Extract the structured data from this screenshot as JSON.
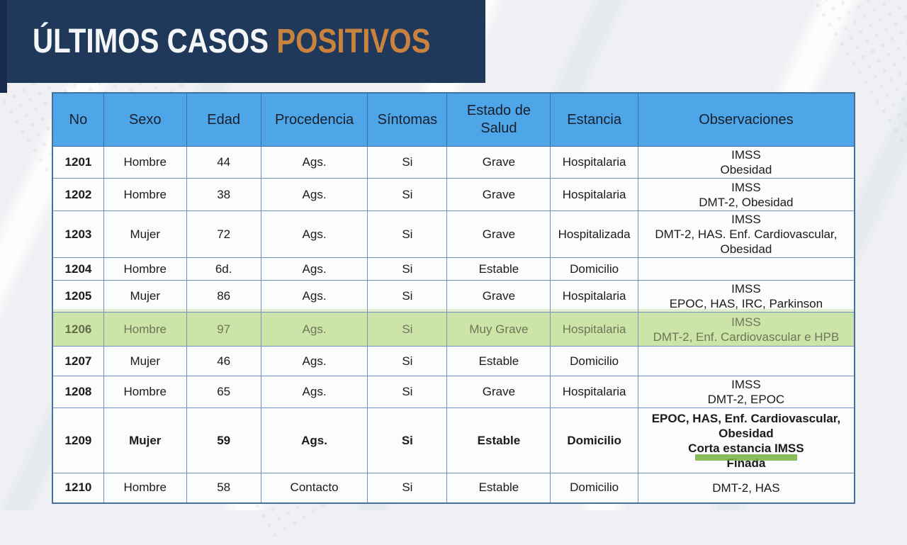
{
  "banner": {
    "title": "ÚLTIMOS CASOS",
    "title_accent": "POSITIVOS"
  },
  "colors": {
    "banner_navy": "#20395a",
    "banner_accent_bar": "#152a4d",
    "title_white": "#f4f6f8",
    "title_orange": "#c9833f",
    "header_blue": "#4ea6e9",
    "table_border_blue": "#41719c",
    "highlight_green": "#cde4a9",
    "marker_green": "#74b23e"
  },
  "table": {
    "columns": [
      {
        "key": "no",
        "label": "No"
      },
      {
        "key": "sexo",
        "label": "Sexo"
      },
      {
        "key": "edad",
        "label": "Edad"
      },
      {
        "key": "procedencia",
        "label": "Procedencia"
      },
      {
        "key": "sintomas",
        "label": "Síntomas"
      },
      {
        "key": "estado_de_salud",
        "label": "Estado de Salud"
      },
      {
        "key": "estancia",
        "label": "Estancia"
      },
      {
        "key": "observaciones",
        "label": "Observaciones"
      }
    ],
    "rows": [
      {
        "no": "1201",
        "sexo": "Hombre",
        "edad": "44",
        "procedencia": "Ags.",
        "sintomas": "Si",
        "estado_de_salud": "Grave",
        "estancia": "Hospitalaria",
        "observaciones": [
          "IMSS",
          "Obesidad"
        ],
        "highlight": false,
        "bold": false
      },
      {
        "no": "1202",
        "sexo": "Hombre",
        "edad": "38",
        "procedencia": "Ags.",
        "sintomas": "Si",
        "estado_de_salud": "Grave",
        "estancia": "Hospitalaria",
        "observaciones": [
          "IMSS",
          "DMT-2, Obesidad"
        ],
        "highlight": false,
        "bold": false
      },
      {
        "no": "1203",
        "sexo": "Mujer",
        "edad": "72",
        "procedencia": "Ags.",
        "sintomas": "Si",
        "estado_de_salud": "Grave",
        "estancia": "Hospitalizada",
        "observaciones": [
          "IMSS",
          "DMT-2, HAS. Enf. Cardiovascular,",
          "Obesidad"
        ],
        "highlight": false,
        "bold": false
      },
      {
        "no": "1204",
        "sexo": "Hombre",
        "edad": "6d.",
        "procedencia": "Ags.",
        "sintomas": "Si",
        "estado_de_salud": "Estable",
        "estancia": "Domicilio",
        "observaciones": [],
        "highlight": false,
        "bold": false
      },
      {
        "no": "1205",
        "sexo": "Mujer",
        "edad": "86",
        "procedencia": "Ags.",
        "sintomas": "Si",
        "estado_de_salud": "Grave",
        "estancia": "Hospitalaria",
        "observaciones": [
          "IMSS",
          "EPOC, HAS, IRC, Parkinson"
        ],
        "highlight": false,
        "bold": false
      },
      {
        "no": "1206",
        "sexo": "Hombre",
        "edad": "97",
        "procedencia": "Ags.",
        "sintomas": "Si",
        "estado_de_salud": "Muy Grave",
        "estancia": "Hospitalaria",
        "observaciones": [
          "IMSS",
          "DMT-2, Enf. Cardiovascular e HPB"
        ],
        "highlight": true,
        "bold": false
      },
      {
        "no": "1207",
        "sexo": "Mujer",
        "edad": "46",
        "procedencia": "Ags.",
        "sintomas": "Si",
        "estado_de_salud": "Estable",
        "estancia": "Domicilio",
        "observaciones": [],
        "highlight": false,
        "bold": false
      },
      {
        "no": "1208",
        "sexo": "Hombre",
        "edad": "65",
        "procedencia": "Ags.",
        "sintomas": "Si",
        "estado_de_salud": "Grave",
        "estancia": "Hospitalaria",
        "observaciones": [
          "IMSS",
          "DMT-2, EPOC"
        ],
        "highlight": false,
        "bold": false
      },
      {
        "no": "1209",
        "sexo": "Mujer",
        "edad": "59",
        "procedencia": "Ags.",
        "sintomas": "Si",
        "estado_de_salud": "Estable",
        "estancia": "Domicilio",
        "observaciones": [
          "EPOC, HAS, Enf. Cardiovascular,",
          "Obesidad",
          {
            "text": "Corta estancia IMSS",
            "marker": true
          },
          "Finada"
        ],
        "highlight": false,
        "bold": true
      },
      {
        "no": "1210",
        "sexo": "Hombre",
        "edad": "58",
        "procedencia": "Contacto",
        "sintomas": "Si",
        "estado_de_salud": "Estable",
        "estancia": "Domicilio",
        "observaciones": [
          "DMT-2, HAS"
        ],
        "highlight": false,
        "bold": false
      }
    ]
  }
}
